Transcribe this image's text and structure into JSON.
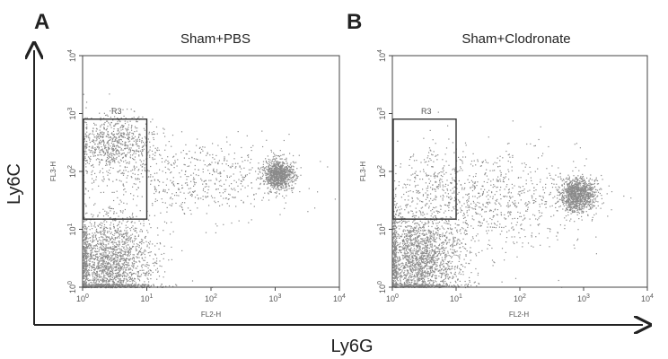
{
  "figure": {
    "y_axis_label": "Ly6C",
    "x_axis_label": "Ly6G"
  },
  "chart_data": [
    {
      "type": "scatter",
      "panel": "A",
      "title": "Sham+PBS",
      "xlabel": "FL2-H",
      "ylabel": "FL3-H",
      "x_scale": "log",
      "y_scale": "log",
      "xlim": [
        1,
        10000
      ],
      "ylim": [
        1,
        10000
      ],
      "x_ticks": [
        "10^0",
        "10^1",
        "10^2",
        "10^3",
        "10^4"
      ],
      "y_ticks": [
        "10^0",
        "10^1",
        "10^2",
        "10^3",
        "10^4"
      ],
      "gate": {
        "label": "R3",
        "x": [
          1,
          10
        ],
        "y": [
          15,
          800
        ]
      },
      "populations": [
        {
          "name_visible": false,
          "center": [
            2.5,
            2.5
          ],
          "spread_log": [
            0.35,
            0.45
          ],
          "relative_density": 1.0
        },
        {
          "name_visible": false,
          "center": [
            3,
            300
          ],
          "spread_log": [
            0.3,
            0.25
          ],
          "relative_density": 0.35
        },
        {
          "name_visible": false,
          "center": [
            1100,
            90
          ],
          "spread_log": [
            0.12,
            0.13
          ],
          "relative_density": 0.45
        },
        {
          "name_visible": false,
          "center": [
            60,
            80
          ],
          "spread_log": [
            0.7,
            0.35
          ],
          "relative_density": 0.25
        }
      ],
      "grid": false,
      "legend": "none"
    },
    {
      "type": "scatter",
      "panel": "B",
      "title": "Sham+Clodronate",
      "xlabel": "FL2-H",
      "ylabel": "FL3-H",
      "x_scale": "log",
      "y_scale": "log",
      "xlim": [
        1,
        10000
      ],
      "ylim": [
        1,
        10000
      ],
      "x_ticks": [
        "10^0",
        "10^1",
        "10^2",
        "10^3",
        "10^4"
      ],
      "y_ticks": [
        "10^0",
        "10^1",
        "10^2",
        "10^3",
        "10^4"
      ],
      "gate": {
        "label": "R3",
        "x": [
          1,
          10
        ],
        "y": [
          15,
          800
        ]
      },
      "populations": [
        {
          "name_visible": false,
          "center": [
            2.5,
            3
          ],
          "spread_log": [
            0.35,
            0.42
          ],
          "relative_density": 1.0
        },
        {
          "name_visible": false,
          "center": [
            800,
            40
          ],
          "spread_log": [
            0.14,
            0.15
          ],
          "relative_density": 0.5
        },
        {
          "name_visible": false,
          "center": [
            40,
            30
          ],
          "spread_log": [
            0.7,
            0.45
          ],
          "relative_density": 0.35
        },
        {
          "name_visible": false,
          "center": [
            5,
            80
          ],
          "spread_log": [
            0.3,
            0.3
          ],
          "relative_density": 0.08
        }
      ],
      "grid": false,
      "legend": "none"
    }
  ]
}
